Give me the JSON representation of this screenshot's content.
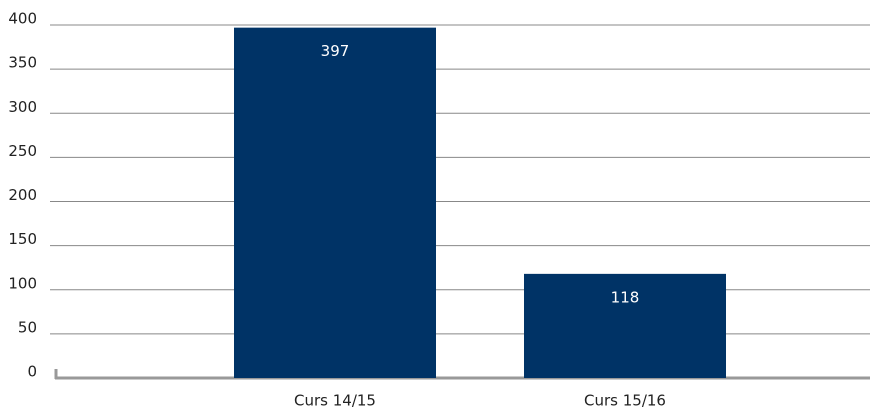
{
  "chart_data": {
    "type": "bar",
    "categories": [
      "Curs 14/15",
      "Curs 15/16"
    ],
    "values": [
      397,
      118
    ],
    "color": "#003366",
    "ylim": [
      0,
      400
    ],
    "yticks": [
      0,
      50,
      100,
      150,
      200,
      250,
      300,
      350,
      400
    ],
    "grid": true
  }
}
